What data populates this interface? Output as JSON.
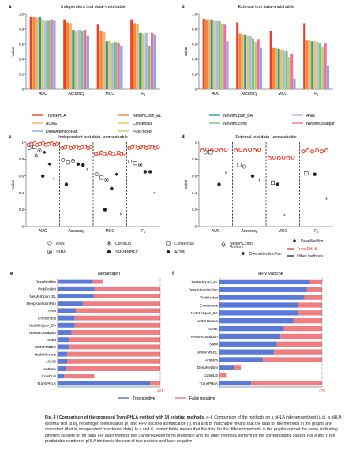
{
  "panel_a": {
    "letter": "a",
    "title": "Independent test data–matchable"
  },
  "panel_b": {
    "letter": "b",
    "title": "External test data–matchable"
  },
  "panel_c": {
    "letter": "c",
    "title": "Independent test data–unmatchable"
  },
  "panel_d": {
    "letter": "d",
    "title": "External test data–unmatchable"
  },
  "panel_e": {
    "letter": "e",
    "title": "Neoantigen"
  },
  "panel_f": {
    "letter": "f",
    "title": "HPV vaccine"
  },
  "colors": {
    "TransPHLA": "#e8402a",
    "NetMHCpan_EL": "#f08a36",
    "NetMHCpan_BA": "#2aa198",
    "ANN": "#a8bde6",
    "ACME": "#f4b26a",
    "Consensus": "#e6c65c",
    "PickPocket": "#b8d070",
    "NetMHCcons": "#7dc07a",
    "NetMHCstabpan": "#f06fa0",
    "DeepAttentionPan": "#8aa8ef",
    "SMM": "#d98fd4",
    "SMMPMBEC": "#c992e0",
    "CombLib": "#7a5fb5",
    "Anthem": "#cfa0cf",
    "DeepNetBim": "#b8a0e0",
    "true_positive": "#5b79d6",
    "false_negative": "#ee7e82"
  },
  "common": {
    "ylabel": "Value",
    "metrics": [
      "AUC",
      "Accuracy",
      "MCC",
      "F",
      "1"
    ],
    "y_ticks": [
      "0",
      "0.2",
      "0.4",
      "0.6",
      "0.8",
      "1.0"
    ],
    "uy_ticks": [
      "0",
      "0.2",
      "0.4",
      "0.6",
      "0.8",
      "1"
    ]
  },
  "legend_ab": [
    "TransPHLA",
    "NetMHCpan_EL",
    "NetMHCpan_BA",
    "ANN",
    "ACME",
    "Consensus",
    "NetMHCcons",
    "NetMHCstabpan",
    "DeepAttentionPan",
    "PickPocket"
  ],
  "legend_cd": {
    "items": [
      "ANN",
      "CombLib",
      "Consensus",
      "NetMHCcons",
      "SMM",
      "SMMPMBEC",
      "ACME",
      "Anthem",
      "DeepNetBim",
      "DeepAttentionPan",
      "TransPHLA",
      "Other methods"
    ]
  },
  "chart_data": [
    {
      "type": "bar",
      "title": "Independent test data–matchable",
      "categories": [
        "AUC",
        "Accuracy",
        "MCC",
        "F1"
      ],
      "ylabel": "Value",
      "ylim": [
        0,
        1
      ],
      "series": [
        {
          "name": "TransPHLA",
          "values": [
            0.97,
            0.93,
            0.86,
            0.93
          ]
        },
        {
          "name": "NetMHCpan_EL",
          "values": [
            0.96,
            0.89,
            0.78,
            0.88
          ]
        },
        {
          "name": "ACME",
          "values": [
            0.95,
            0.88,
            0.77,
            0.87
          ]
        },
        {
          "name": "NetMHCpan_BA",
          "values": [
            0.96,
            0.79,
            0.64,
            0.75
          ]
        },
        {
          "name": "Consensus",
          "values": [
            0.93,
            0.78,
            0.64,
            0.74
          ]
        },
        {
          "name": "ANN",
          "values": [
            0.92,
            0.79,
            0.62,
            0.75
          ]
        },
        {
          "name": "NetMHCcons",
          "values": [
            0.92,
            0.78,
            0.63,
            0.58
          ]
        },
        {
          "name": "NetMHCstabpan",
          "values": [
            0.93,
            0.79,
            0.62,
            0.75
          ]
        },
        {
          "name": "DeepAttentionPan",
          "values": [
            0.92,
            0.72,
            0.58,
            0.73
          ]
        }
      ]
    },
    {
      "type": "bar",
      "title": "External test data–matchable",
      "categories": [
        "AUC",
        "Accuracy",
        "MCC",
        "F1"
      ],
      "ylabel": "Value",
      "ylim": [
        0,
        1
      ],
      "series": [
        {
          "name": "TransPHLA",
          "values": [
            0.94,
            0.89,
            0.78,
            0.88
          ]
        },
        {
          "name": "NetMHCpan_EL",
          "values": [
            0.93,
            0.74,
            0.55,
            0.65
          ]
        },
        {
          "name": "ACME",
          "values": [
            0.93,
            0.73,
            0.55,
            0.65
          ]
        },
        {
          "name": "NetMHCpan_BA",
          "values": [
            0.93,
            0.73,
            0.54,
            0.64
          ]
        },
        {
          "name": "Consensus",
          "values": [
            0.92,
            0.72,
            0.53,
            0.64
          ]
        },
        {
          "name": "ANN",
          "values": [
            0.92,
            0.71,
            0.52,
            0.63
          ]
        },
        {
          "name": "NetMHCcons",
          "values": [
            0.91,
            0.68,
            0.51,
            0.62
          ]
        },
        {
          "name": "PickPocket",
          "values": [
            0.87,
            0.63,
            0.43,
            0.56
          ]
        },
        {
          "name": "NetMHCstabpan",
          "values": [
            0.86,
            0.66,
            0.47,
            0.61
          ]
        },
        {
          "name": "DeepAttentionPan",
          "values": [
            0.64,
            0.55,
            0.14,
            0.32
          ]
        }
      ]
    },
    {
      "type": "bar",
      "title": "Neoantigen",
      "categories": [
        "DeepNetBim",
        "PickPocket",
        "NetMHCpan_EL",
        "DeepAttentionPan",
        "ANN",
        "Consensus",
        "NetMHCpan_BA",
        "NetMHCstabpan",
        "SMM",
        "SMMPMBEC",
        "NetMHCcons",
        "ACME",
        "Anthem",
        "CombLib",
        "TransPHLA"
      ],
      "series": [
        {
          "name": "True positive",
          "values": [
            76,
            79,
            78,
            55,
            39,
            37,
            37,
            30,
            25,
            24,
            21,
            21,
            18,
            14,
            199
          ]
        },
        {
          "name": "False negative",
          "values": [
            21,
            142,
            143,
            166,
            182,
            184,
            184,
            191,
            196,
            197,
            200,
            200,
            203,
            65,
            22
          ]
        }
      ],
      "totals": [
        "221",
        "221"
      ]
    },
    {
      "type": "bar",
      "title": "HPV vaccine",
      "categories": [
        "NetMHCpan_EL",
        "DeepAttentionPan",
        "PickPocket",
        "Consensus",
        "NetMHCpan_BA",
        "NetMHCcons",
        "ACME",
        "NetMHCstabpan",
        "SMM",
        "SMMPMBEC",
        "Anthem",
        "DeepNetBim",
        "CombLib",
        "TransPHLA"
      ],
      "series": [
        {
          "name": "True positive",
          "values": [
            245,
            237,
            230,
            213,
            213,
            200,
            175,
            165,
            155,
            148,
            118,
            40,
            0,
            86
          ]
        },
        {
          "name": "False negative",
          "values": [
            33,
            41,
            48,
            65,
            65,
            78,
            103,
            113,
            123,
            130,
            160,
            18,
            18,
            192
          ]
        }
      ],
      "totals": [
        "278",
        "278"
      ]
    }
  ],
  "legend_ef": {
    "tp": "True positive",
    "fn": "False negative"
  },
  "caption": {
    "lead": "Fig. 4 | Comparison of the proposed TransPHLA method with 14 existing methods.",
    "body": " a–f, Comparison of the methods on a pHLA independent test (a,c), a pHLA external test (b,d), neoantigen identification (e) and HPV vaccine identification (f). In a and b, matchable means that the data for the methods in the graphs are consistent (that is, independent or external data). In c and d, unmatchable means that the data for the different methods in the graphs are not the same, indicating different subsets of the data. For each method, the TransPHLA performs prediction and the other methods perform on the corresponding subset. For e and f, the predictable number of pHLA binders is the sum of true positive and false negative."
  }
}
